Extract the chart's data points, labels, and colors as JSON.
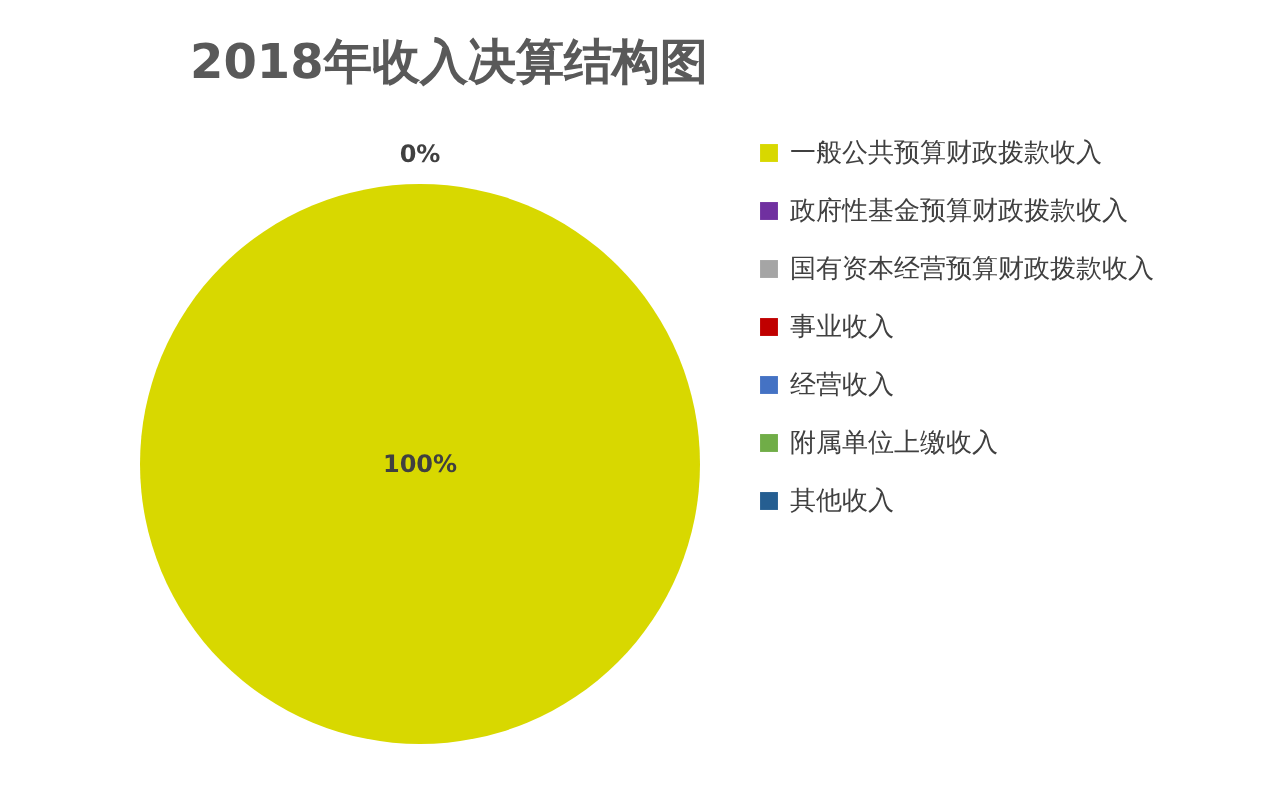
{
  "chart_data": {
    "type": "pie",
    "title": "2018年收入决算结构图",
    "categories": [
      "一般公共预算财政拨款收入",
      "政府性基金预算财政拨款收入",
      "国有资本经营预算财政拨款收入",
      "事业收入",
      "经营收入",
      "附属单位上缴收入",
      "其他收入"
    ],
    "values": [
      100,
      0,
      0,
      0,
      0,
      0,
      0
    ],
    "colors": [
      "#d8d800",
      "#7030a0",
      "#a5a5a5",
      "#c00000",
      "#4472c4",
      "#70ad47",
      "#255e91"
    ],
    "value_labels": [
      "100%",
      "0%",
      null,
      null,
      null,
      null,
      null
    ],
    "legend": "right"
  }
}
